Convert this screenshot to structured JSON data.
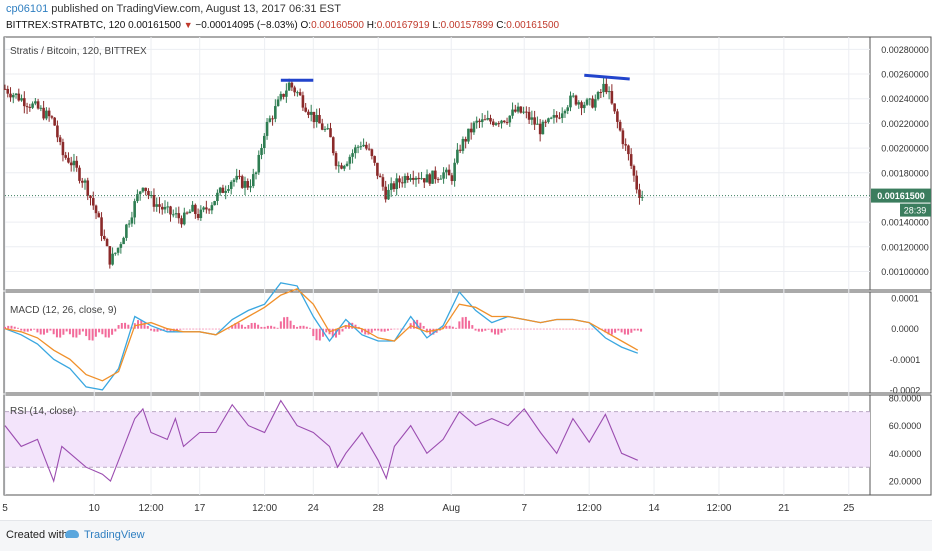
{
  "header": {
    "user": "cp06101",
    "published_text": "published on TradingView.com, August 13, 2017 06:31 EST",
    "symbol": "BITTREX:STRATBTC, 120",
    "last": "0.00161500",
    "change": "−0.00014095 (−8.03%)",
    "o_label": "O:",
    "o_value": "0.00160500",
    "h_label": "H:",
    "h_value": "0.00167919",
    "l_label": "L:",
    "l_value": "0.00157899",
    "c_label": "C:",
    "c_value": "0.00161500"
  },
  "footer": {
    "created_with": "Created with",
    "brand": "TradingView"
  },
  "colors": {
    "up": "#2e7d52",
    "down": "#8b2a2a",
    "macd_line": "#3aa7e0",
    "signal_line": "#f0902a",
    "hist": "#f26a9a",
    "rsi_line": "#9b4db0",
    "rsi_band": "#f3e4fb",
    "hline": "#2244cc",
    "price_tag": "#3b7d5e"
  },
  "chart_data": [
    {
      "type": "candlestick",
      "title": "Stratis / Bitcoin, 120, BITTREX",
      "ylim": [
        0.00085,
        0.0029
      ],
      "y_ticks": [
        "0.00280000",
        "0.00260000",
        "0.00240000",
        "0.00220000",
        "0.00200000",
        "0.00180000",
        "0.00160000",
        "0.00140000",
        "0.00120000",
        "0.00100000"
      ],
      "last_price_label": "0.00161500",
      "countdown_label": "28:39",
      "x_labels": [
        "5",
        "10",
        "12:00",
        "17",
        "12:00",
        "24",
        "28",
        "Aug",
        "7",
        "12:00",
        "14",
        "12:00",
        "21",
        "25"
      ],
      "x_label_positions": [
        0,
        5.5,
        9,
        12,
        16,
        19,
        23,
        27.5,
        32,
        36,
        40,
        44,
        48,
        52
      ],
      "x_range": [
        0,
        53
      ],
      "last_x": 39.3,
      "close_path": [
        [
          0,
          0.00248
        ],
        [
          1,
          0.0024
        ],
        [
          2,
          0.00232
        ],
        [
          3,
          0.00222
        ],
        [
          3.5,
          0.00195
        ],
        [
          4,
          0.0019
        ],
        [
          5,
          0.0017
        ],
        [
          5.6,
          0.00148
        ],
        [
          6,
          0.0013
        ],
        [
          6.5,
          0.00108
        ],
        [
          7,
          0.0012
        ],
        [
          8,
          0.00155
        ],
        [
          8.5,
          0.00172
        ],
        [
          9,
          0.00158
        ],
        [
          10,
          0.00148
        ],
        [
          11,
          0.00142
        ],
        [
          11.5,
          0.0015
        ],
        [
          12,
          0.00145
        ],
        [
          13,
          0.0016
        ],
        [
          14,
          0.00175
        ],
        [
          15,
          0.0017
        ],
        [
          15.5,
          0.0018
        ],
        [
          16,
          0.00215
        ],
        [
          17,
          0.0024
        ],
        [
          17.5,
          0.00252
        ],
        [
          18,
          0.00245
        ],
        [
          19,
          0.00225
        ],
        [
          20,
          0.0021
        ],
        [
          20.5,
          0.00185
        ],
        [
          21,
          0.0019
        ],
        [
          22,
          0.00205
        ],
        [
          22.5,
          0.00195
        ],
        [
          23,
          0.00178
        ],
        [
          23.5,
          0.00162
        ],
        [
          24,
          0.0017
        ],
        [
          25,
          0.0018
        ],
        [
          26,
          0.00175
        ],
        [
          27,
          0.0018
        ],
        [
          27.5,
          0.00175
        ],
        [
          28,
          0.002
        ],
        [
          29,
          0.0022
        ],
        [
          30,
          0.00222
        ],
        [
          31,
          0.00225
        ],
        [
          31.5,
          0.0023
        ],
        [
          32,
          0.00228
        ],
        [
          32.5,
          0.00222
        ],
        [
          33,
          0.00215
        ],
        [
          34,
          0.00225
        ],
        [
          34.5,
          0.00235
        ],
        [
          35,
          0.0024
        ],
        [
          36,
          0.00235
        ],
        [
          36.5,
          0.0024
        ],
        [
          37,
          0.00252
        ],
        [
          37.5,
          0.0023
        ],
        [
          38,
          0.0021
        ],
        [
          38.5,
          0.0019
        ],
        [
          39,
          0.00165
        ],
        [
          39.3,
          0.00161
        ]
      ],
      "annotations": [
        {
          "type": "hline",
          "x": [
            17,
            19
          ],
          "y": 0.00255
        },
        {
          "type": "trendline",
          "x": [
            35.7,
            38.5
          ],
          "y": [
            0.00259,
            0.00256
          ]
        }
      ]
    },
    {
      "type": "line",
      "title": "MACD (12, 26, close, 9)",
      "ylim": [
        -0.00021,
        0.00012
      ],
      "y_ticks": [
        "0.0001",
        "0.0000",
        "-0.0001",
        "-0.0002"
      ],
      "series": [
        {
          "name": "MACD",
          "points": [
            [
              0,
              0.0
            ],
            [
              1,
              -2e-05
            ],
            [
              2,
              -5e-05
            ],
            [
              3,
              -0.0001
            ],
            [
              4,
              -0.00013
            ],
            [
              5,
              -0.00019
            ],
            [
              6,
              -0.0002
            ],
            [
              7,
              -0.00013
            ],
            [
              8,
              4e-05
            ],
            [
              9,
              1e-05
            ],
            [
              10,
              -1e-05
            ],
            [
              11,
              -1e-05
            ],
            [
              12,
              -1e-05
            ],
            [
              13,
              -2e-05
            ],
            [
              14,
              3e-05
            ],
            [
              15,
              6e-05
            ],
            [
              16,
              8e-05
            ],
            [
              17,
              0.00015
            ],
            [
              18,
              0.00014
            ],
            [
              19,
              4e-05
            ],
            [
              20,
              -4e-05
            ],
            [
              21,
              3e-05
            ],
            [
              22,
              -2e-05
            ],
            [
              23,
              -4e-05
            ],
            [
              24,
              -4e-05
            ],
            [
              25,
              4e-05
            ],
            [
              26,
              -3e-05
            ],
            [
              27,
              1e-05
            ],
            [
              28,
              0.00012
            ],
            [
              29,
              6e-05
            ],
            [
              30,
              2e-05
            ],
            [
              31,
              4e-05
            ],
            [
              32,
              3e-05
            ],
            [
              33,
              2e-05
            ],
            [
              34,
              3e-05
            ],
            [
              35,
              3e-05
            ],
            [
              36,
              2e-05
            ],
            [
              37,
              -3e-05
            ],
            [
              38,
              -6e-05
            ],
            [
              39,
              -8e-05
            ]
          ]
        },
        {
          "name": "Signal",
          "points": [
            [
              0,
              0.0
            ],
            [
              1,
              -1e-05
            ],
            [
              2,
              -3e-05
            ],
            [
              3,
              -7e-05
            ],
            [
              4,
              -0.0001
            ],
            [
              5,
              -0.00015
            ],
            [
              6,
              -0.00017
            ],
            [
              7,
              -0.00014
            ],
            [
              8,
              1e-05
            ],
            [
              9,
              2e-05
            ],
            [
              10,
              0.0
            ],
            [
              11,
              -1e-05
            ],
            [
              12,
              -1e-05
            ],
            [
              13,
              -2e-05
            ],
            [
              14,
              1e-05
            ],
            [
              15,
              4e-05
            ],
            [
              16,
              7e-05
            ],
            [
              17,
              0.00011
            ],
            [
              18,
              0.00013
            ],
            [
              19,
              8e-05
            ],
            [
              20,
              -1e-05
            ],
            [
              21,
              1e-05
            ],
            [
              22,
              0.0
            ],
            [
              23,
              -3e-05
            ],
            [
              24,
              -4e-05
            ],
            [
              25,
              1e-05
            ],
            [
              26,
              -1e-05
            ],
            [
              27,
              0.0
            ],
            [
              28,
              8e-05
            ],
            [
              29,
              7e-05
            ],
            [
              30,
              4e-05
            ],
            [
              31,
              4e-05
            ],
            [
              32,
              3e-05
            ],
            [
              33,
              2e-05
            ],
            [
              34,
              3e-05
            ],
            [
              35,
              3e-05
            ],
            [
              36,
              2e-05
            ],
            [
              37,
              -1e-05
            ],
            [
              38,
              -4e-05
            ],
            [
              39,
              -7e-05
            ]
          ]
        }
      ],
      "histogram": [
        [
          0,
          1e-05
        ],
        [
          1,
          -1e-05
        ],
        [
          2,
          -2e-05
        ],
        [
          3,
          -3e-05
        ],
        [
          4,
          -3e-05
        ],
        [
          5,
          -4e-05
        ],
        [
          6,
          -3e-05
        ],
        [
          7,
          2e-05
        ],
        [
          8,
          3e-05
        ],
        [
          9,
          -1e-05
        ],
        [
          10,
          -1e-05
        ],
        [
          11,
          0.0
        ],
        [
          12,
          0.0
        ],
        [
          13,
          0.0
        ],
        [
          14,
          2e-05
        ],
        [
          15,
          2e-05
        ],
        [
          16,
          1e-05
        ],
        [
          17,
          4e-05
        ],
        [
          18,
          1e-05
        ],
        [
          19,
          -4e-05
        ],
        [
          20,
          -3e-05
        ],
        [
          21,
          2e-05
        ],
        [
          22,
          -2e-05
        ],
        [
          23,
          -1e-05
        ],
        [
          24,
          0.0
        ],
        [
          25,
          3e-05
        ],
        [
          26,
          -2e-05
        ],
        [
          27,
          1e-05
        ],
        [
          28,
          4e-05
        ],
        [
          29,
          -1e-05
        ],
        [
          30,
          -2e-05
        ],
        [
          31,
          0.0
        ],
        [
          32,
          0.0
        ],
        [
          33,
          0.0
        ],
        [
          34,
          0.0
        ],
        [
          35,
          0.0
        ],
        [
          36,
          0.0
        ],
        [
          37,
          -2e-05
        ],
        [
          38,
          -2e-05
        ],
        [
          39,
          -1e-05
        ]
      ]
    },
    {
      "type": "line",
      "title": "RSI (14, close)",
      "ylim": [
        10,
        82
      ],
      "y_ticks": [
        "80.0000",
        "60.0000",
        "40.0000",
        "20.0000"
      ],
      "bands": [
        30,
        70
      ],
      "series": [
        {
          "name": "RSI",
          "points": [
            [
              0,
              60
            ],
            [
              1,
              45
            ],
            [
              2,
              50
            ],
            [
              2.5,
              35
            ],
            [
              3,
              20
            ],
            [
              3.5,
              45
            ],
            [
              4,
              40
            ],
            [
              5,
              30
            ],
            [
              6,
              25
            ],
            [
              6.5,
              20
            ],
            [
              7,
              35
            ],
            [
              8,
              65
            ],
            [
              8.5,
              72
            ],
            [
              9,
              55
            ],
            [
              10,
              50
            ],
            [
              10.5,
              65
            ],
            [
              11,
              45
            ],
            [
              12,
              55
            ],
            [
              13,
              55
            ],
            [
              14,
              75
            ],
            [
              15,
              60
            ],
            [
              16,
              55
            ],
            [
              17,
              78
            ],
            [
              18,
              60
            ],
            [
              19,
              55
            ],
            [
              20,
              45
            ],
            [
              20.5,
              30
            ],
            [
              21,
              40
            ],
            [
              22,
              55
            ],
            [
              23,
              35
            ],
            [
              23.5,
              22
            ],
            [
              24,
              45
            ],
            [
              25,
              60
            ],
            [
              26,
              40
            ],
            [
              27,
              50
            ],
            [
              28,
              70
            ],
            [
              29,
              60
            ],
            [
              30,
              65
            ],
            [
              31,
              60
            ],
            [
              32,
              72
            ],
            [
              33,
              55
            ],
            [
              34,
              40
            ],
            [
              35,
              65
            ],
            [
              36,
              48
            ],
            [
              37,
              68
            ],
            [
              38,
              40
            ],
            [
              39,
              35
            ]
          ]
        }
      ]
    }
  ]
}
